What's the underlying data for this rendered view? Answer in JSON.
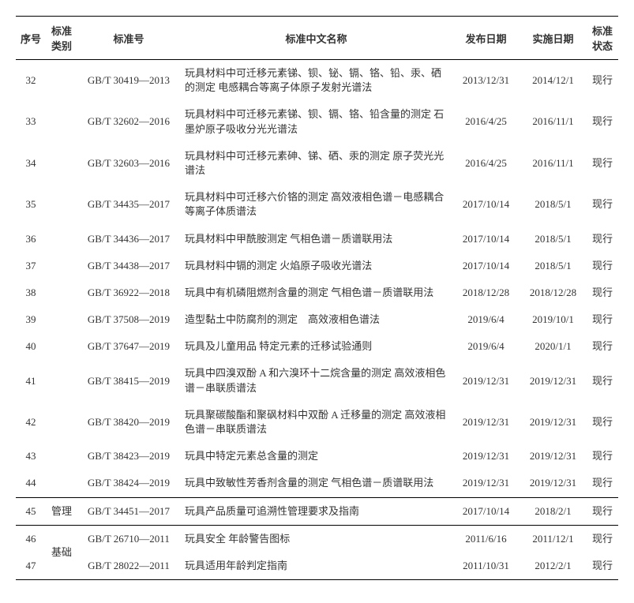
{
  "headers": {
    "seq": "序号",
    "cat": "标准类别",
    "std": "标准号",
    "name": "标准中文名称",
    "pub": "发布日期",
    "eff": "实施日期",
    "stat": "标准状态"
  },
  "rows": [
    {
      "seq": "32",
      "cat": "",
      "std": "GB/T 30419—2013",
      "name": "玩具材料中可迁移元素锑、钡、铋、镉、铬、铅、汞、硒的测定 电感耦合等离子体原子发射光谱法",
      "pub": "2013/12/31",
      "eff": "2014/12/1",
      "stat": "现行"
    },
    {
      "seq": "33",
      "cat": "",
      "std": "GB/T 32602—2016",
      "name": "玩具材料中可迁移元素锑、钡、镉、铬、铅含量的测定 石墨炉原子吸收分光光谱法",
      "pub": "2016/4/25",
      "eff": "2016/11/1",
      "stat": "现行"
    },
    {
      "seq": "34",
      "cat": "",
      "std": "GB/T 32603—2016",
      "name": "玩具材料中可迁移元素砷、锑、硒、汞的测定 原子荧光光谱法",
      "pub": "2016/4/25",
      "eff": "2016/11/1",
      "stat": "现行"
    },
    {
      "seq": "35",
      "cat": "",
      "std": "GB/T 34435—2017",
      "name": "玩具材料中可迁移六价铬的测定 高效液相色谱－电感耦合等离子体质谱法",
      "pub": "2017/10/14",
      "eff": "2018/5/1",
      "stat": "现行"
    },
    {
      "seq": "36",
      "cat": "",
      "std": "GB/T 34436—2017",
      "name": "玩具材料中甲酰胺测定 气相色谱－质谱联用法",
      "pub": "2017/10/14",
      "eff": "2018/5/1",
      "stat": "现行"
    },
    {
      "seq": "37",
      "cat": "",
      "std": "GB/T 34438—2017",
      "name": "玩具材料中镉的测定 火焰原子吸收光谱法",
      "pub": "2017/10/14",
      "eff": "2018/5/1",
      "stat": "现行"
    },
    {
      "seq": "38",
      "cat": "",
      "std": "GB/T 36922—2018",
      "name": "玩具中有机磷阻燃剂含量的测定 气相色谱－质谱联用法",
      "pub": "2018/12/28",
      "eff": "2018/12/28",
      "stat": "现行"
    },
    {
      "seq": "39",
      "cat": "",
      "std": "GB/T 37508—2019",
      "name": "造型黏土中防腐剂的测定　高效液相色谱法",
      "pub": "2019/6/4",
      "eff": "2019/10/1",
      "stat": "现行"
    },
    {
      "seq": "40",
      "cat": "",
      "std": "GB/T 37647—2019",
      "name": "玩具及儿童用品 特定元素的迁移试验通则",
      "pub": "2019/6/4",
      "eff": "2020/1/1",
      "stat": "现行"
    },
    {
      "seq": "41",
      "cat": "",
      "std": "GB/T 38415—2019",
      "name": "玩具中四溴双酚 A 和六溴环十二烷含量的测定 高效液相色谱－串联质谱法",
      "pub": "2019/12/31",
      "eff": "2019/12/31",
      "stat": "现行"
    },
    {
      "seq": "42",
      "cat": "",
      "std": "GB/T 38420—2019",
      "name": "玩具聚碳酸酯和聚砜材料中双酚 A 迁移量的测定 高效液相色谱－串联质谱法",
      "pub": "2019/12/31",
      "eff": "2019/12/31",
      "stat": "现行"
    },
    {
      "seq": "43",
      "cat": "",
      "std": "GB/T 38423—2019",
      "name": "玩具中特定元素总含量的测定",
      "pub": "2019/12/31",
      "eff": "2019/12/31",
      "stat": "现行"
    },
    {
      "seq": "44",
      "cat": "",
      "std": "GB/T 38424—2019",
      "name": "玩具中致敏性芳香剂含量的测定 气相色谱－质谱联用法",
      "pub": "2019/12/31",
      "eff": "2019/12/31",
      "stat": "现行"
    },
    {
      "seq": "45",
      "cat": "管理",
      "std": "GB/T 34451—2017",
      "name": "玩具产品质量可追溯性管理要求及指南",
      "pub": "2017/10/14",
      "eff": "2018/2/1",
      "stat": "现行"
    },
    {
      "seq": "46",
      "cat": "基础",
      "std": "GB/T 26710—2011",
      "name": "玩具安全 年龄警告图标",
      "pub": "2011/6/16",
      "eff": "2011/12/1",
      "stat": "现行"
    },
    {
      "seq": "47",
      "cat": "",
      "std": "GB/T 28022—2011",
      "name": "玩具适用年龄判定指南",
      "pub": "2011/10/31",
      "eff": "2012/2/1",
      "stat": "现行"
    }
  ]
}
